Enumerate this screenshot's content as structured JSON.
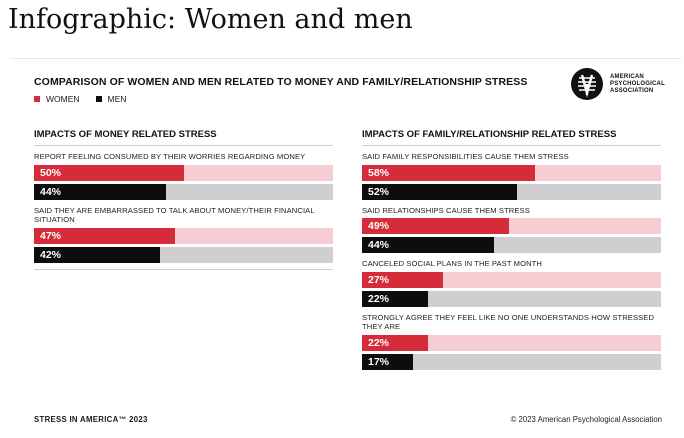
{
  "page_title": "Infographic: Women and men",
  "colors": {
    "women": "#d62c3a",
    "women_track": "#f6cdd2",
    "men": "#0d0d0d",
    "men_track": "#cfcfcf"
  },
  "logo": {
    "icon": "apa-logo-icon",
    "lines": [
      "AMERICAN",
      "PSYCHOLOGICAL",
      "ASSOCIATION"
    ]
  },
  "footer": {
    "left": "STRESS IN AMERICA™ 2023",
    "right": "© 2023 American Psychological Association"
  },
  "chart_data": {
    "type": "bar",
    "title": "COMPARISON OF WOMEN AND MEN RELATED TO MONEY AND FAMILY/RELATIONSHIP STRESS",
    "legend": {
      "placement": "top-left",
      "entries": [
        "WOMEN",
        "MEN"
      ]
    },
    "value_format": "percent",
    "xlim": [
      0,
      100
    ],
    "panels": [
      {
        "heading": "IMPACTS OF MONEY RELATED STRESS",
        "metrics": [
          {
            "label": "REPORT FEELING CONSUMED BY THEIR WORRIES REGARDING MONEY",
            "series": [
              {
                "name": "WOMEN",
                "value": 50,
                "display": "50%"
              },
              {
                "name": "MEN",
                "value": 44,
                "display": "44%"
              }
            ]
          },
          {
            "label": "SAID THEY ARE EMBARRASSED TO TALK ABOUT MONEY/THEIR FINANCIAL SITUATION",
            "series": [
              {
                "name": "WOMEN",
                "value": 47,
                "display": "47%"
              },
              {
                "name": "MEN",
                "value": 42,
                "display": "42%"
              }
            ]
          }
        ]
      },
      {
        "heading": "IMPACTS OF FAMILY/RELATIONSHIP RELATED STRESS",
        "metrics": [
          {
            "label": "SAID FAMILY RESPONSIBILITIES CAUSE THEM STRESS",
            "series": [
              {
                "name": "WOMEN",
                "value": 58,
                "display": "58%"
              },
              {
                "name": "MEN",
                "value": 52,
                "display": "52%"
              }
            ]
          },
          {
            "label": "SAID RELATIONSHIPS CAUSE THEM STRESS",
            "series": [
              {
                "name": "WOMEN",
                "value": 49,
                "display": "49%"
              },
              {
                "name": "MEN",
                "value": 44,
                "display": "44%"
              }
            ]
          },
          {
            "label": "CANCELED SOCIAL PLANS IN THE PAST MONTH",
            "series": [
              {
                "name": "WOMEN",
                "value": 27,
                "display": "27%"
              },
              {
                "name": "MEN",
                "value": 22,
                "display": "22%"
              }
            ]
          },
          {
            "label": "STRONGLY AGREE THEY FEEL LIKE NO ONE UNDERSTANDS HOW STRESSED THEY ARE",
            "series": [
              {
                "name": "WOMEN",
                "value": 22,
                "display": "22%"
              },
              {
                "name": "MEN",
                "value": 17,
                "display": "17%"
              }
            ]
          }
        ]
      }
    ]
  }
}
